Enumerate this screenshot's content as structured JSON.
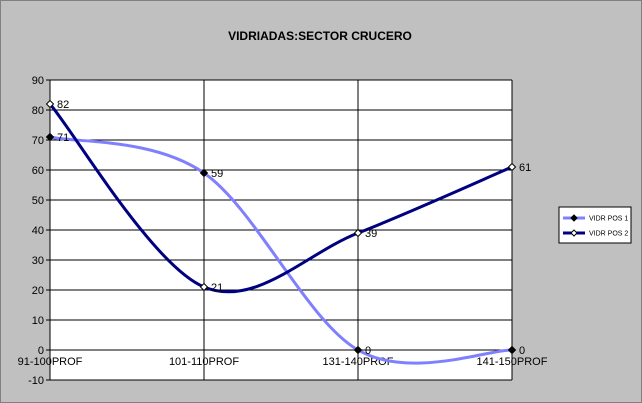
{
  "chart_data": {
    "type": "line",
    "title": "VIDRIADAS:SECTOR CRUCERO",
    "xlabel": "",
    "ylabel": "",
    "categories": [
      "91-100PROF",
      "101-110PROF",
      "131-140PROF",
      "141-150PROF"
    ],
    "ylim": [
      -10,
      90
    ],
    "yticks": [
      -10,
      0,
      10,
      20,
      30,
      40,
      50,
      60,
      70,
      80,
      90
    ],
    "grid": true,
    "smooth": true,
    "legend_position": "right",
    "series": [
      {
        "name": "VIDR POS 1",
        "values": [
          71,
          59,
          0,
          0
        ],
        "color": "#8080ff",
        "marker": "diamond-filled",
        "marker_color": "#000000"
      },
      {
        "name": "VIDR POS 2",
        "values": [
          82,
          21,
          39,
          61
        ],
        "color": "#000080",
        "marker": "diamond-open",
        "marker_color": "#ffffff"
      }
    ]
  }
}
